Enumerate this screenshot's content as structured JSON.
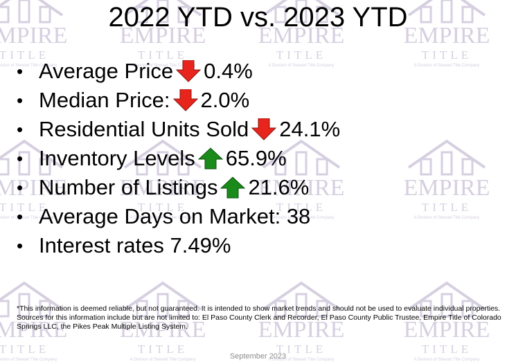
{
  "slide": {
    "title": "2022 YTD vs. 2023 YTD",
    "bullets": [
      {
        "text": "Average Price",
        "arrow": "down",
        "change": "0.4%"
      },
      {
        "text": "Median Price: ",
        "arrow": "down",
        "change": "2.0%"
      },
      {
        "text": "Residential Units Sold ",
        "arrow": "down",
        "change": "24.1%"
      },
      {
        "text": "Inventory Levels ",
        "arrow": "up",
        "change": "65.9%"
      },
      {
        "text": "Number of Listings  ",
        "arrow": "up",
        "change": "21.6%"
      },
      {
        "text": "Average Days on Market: 38",
        "arrow": "none",
        "change": ""
      },
      {
        "text": "Interest rates 7.49%",
        "arrow": "none",
        "change": ""
      }
    ],
    "footnote": "*This information is deemed reliable, but not guaranteed.  It is intended to show market trends and should not be used to evaluate individual properties.  Sources for this information include but are not limited to: El Paso County Clerk and Recorder, El Paso County Public Trustee, Empire Title of Colorado Springs LLC, the Pikes Peak Multiple Listing System.",
    "date": "September 2023"
  },
  "watermark": {
    "brand": "EMPIRE",
    "subtitle": "TITLE",
    "tagline": "A Division of Stewart Title Company",
    "color": "#d6cfe0"
  },
  "colors": {
    "down_arrow": "#e8251c",
    "up_arrow": "#1a8a1a"
  }
}
